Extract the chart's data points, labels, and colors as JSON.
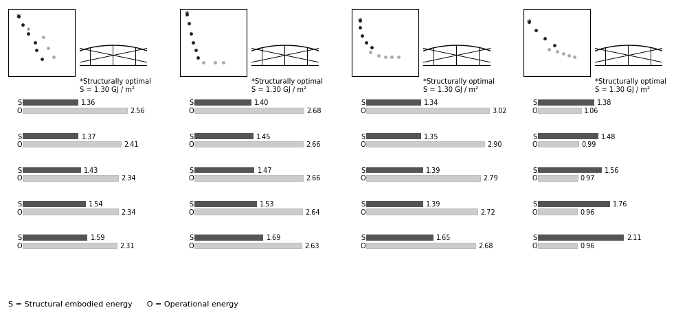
{
  "scatter_data": [
    {
      "points_dark": [
        [
          0.15,
          0.88
        ],
        [
          0.22,
          0.76
        ],
        [
          0.3,
          0.63
        ],
        [
          0.4,
          0.5
        ],
        [
          0.42,
          0.38
        ],
        [
          0.5,
          0.25
        ]
      ],
      "points_light": [
        [
          0.3,
          0.7
        ],
        [
          0.52,
          0.58
        ],
        [
          0.6,
          0.42
        ],
        [
          0.68,
          0.28
        ]
      ],
      "star_point": [
        0.15,
        0.88
      ]
    },
    {
      "points_dark": [
        [
          0.1,
          0.92
        ],
        [
          0.13,
          0.78
        ],
        [
          0.16,
          0.63
        ],
        [
          0.2,
          0.5
        ],
        [
          0.24,
          0.38
        ],
        [
          0.27,
          0.27
        ]
      ],
      "points_light": [
        [
          0.35,
          0.2
        ],
        [
          0.52,
          0.2
        ],
        [
          0.65,
          0.2
        ]
      ],
      "star_point": [
        0.1,
        0.92
      ]
    },
    {
      "points_dark": [
        [
          0.12,
          0.82
        ],
        [
          0.12,
          0.72
        ],
        [
          0.15,
          0.6
        ],
        [
          0.22,
          0.5
        ],
        [
          0.3,
          0.43
        ]
      ],
      "points_light": [
        [
          0.28,
          0.35
        ],
        [
          0.4,
          0.3
        ],
        [
          0.5,
          0.28
        ],
        [
          0.6,
          0.28
        ],
        [
          0.7,
          0.28
        ]
      ],
      "star_point": [
        0.12,
        0.82
      ]
    },
    {
      "points_dark": [
        [
          0.08,
          0.8
        ],
        [
          0.18,
          0.68
        ],
        [
          0.32,
          0.56
        ],
        [
          0.46,
          0.46
        ]
      ],
      "points_light": [
        [
          0.38,
          0.4
        ],
        [
          0.5,
          0.36
        ],
        [
          0.6,
          0.33
        ],
        [
          0.68,
          0.3
        ],
        [
          0.76,
          0.28
        ]
      ],
      "star_point": [
        0.08,
        0.8
      ]
    }
  ],
  "bar_data": [
    [
      {
        "S": 1.36,
        "O": 2.56
      },
      {
        "S": 1.37,
        "O": 2.41
      },
      {
        "S": 1.43,
        "O": 2.34
      },
      {
        "S": 1.54,
        "O": 2.34
      },
      {
        "S": 1.59,
        "O": 2.31
      }
    ],
    [
      {
        "S": 1.4,
        "O": 2.68
      },
      {
        "S": 1.45,
        "O": 2.66
      },
      {
        "S": 1.47,
        "O": 2.66
      },
      {
        "S": 1.53,
        "O": 2.64
      },
      {
        "S": 1.69,
        "O": 2.63
      }
    ],
    [
      {
        "S": 1.34,
        "O": 3.02
      },
      {
        "S": 1.35,
        "O": 2.9
      },
      {
        "S": 1.39,
        "O": 2.79
      },
      {
        "S": 1.39,
        "O": 2.72
      },
      {
        "S": 1.65,
        "O": 2.68
      }
    ],
    [
      {
        "S": 1.38,
        "O": 1.06
      },
      {
        "S": 1.48,
        "O": 0.99
      },
      {
        "S": 1.56,
        "O": 0.97
      },
      {
        "S": 1.76,
        "O": 0.96
      },
      {
        "S": 2.11,
        "O": 0.96
      }
    ]
  ],
  "s_color": "#555555",
  "o_color": "#cccccc",
  "o_edge_color": "#aaaaaa",
  "structurally_optimal_line1": "*Structurally optimal",
  "structurally_optimal_line2": "S = 1.30 GJ / m²",
  "footnote": "S = Structural embodied energy      O = Operational energy",
  "bar_max": 3.2,
  "dark_dot_color": "#222222",
  "light_dot_color": "#aaaaaa",
  "star_color": "#222222"
}
